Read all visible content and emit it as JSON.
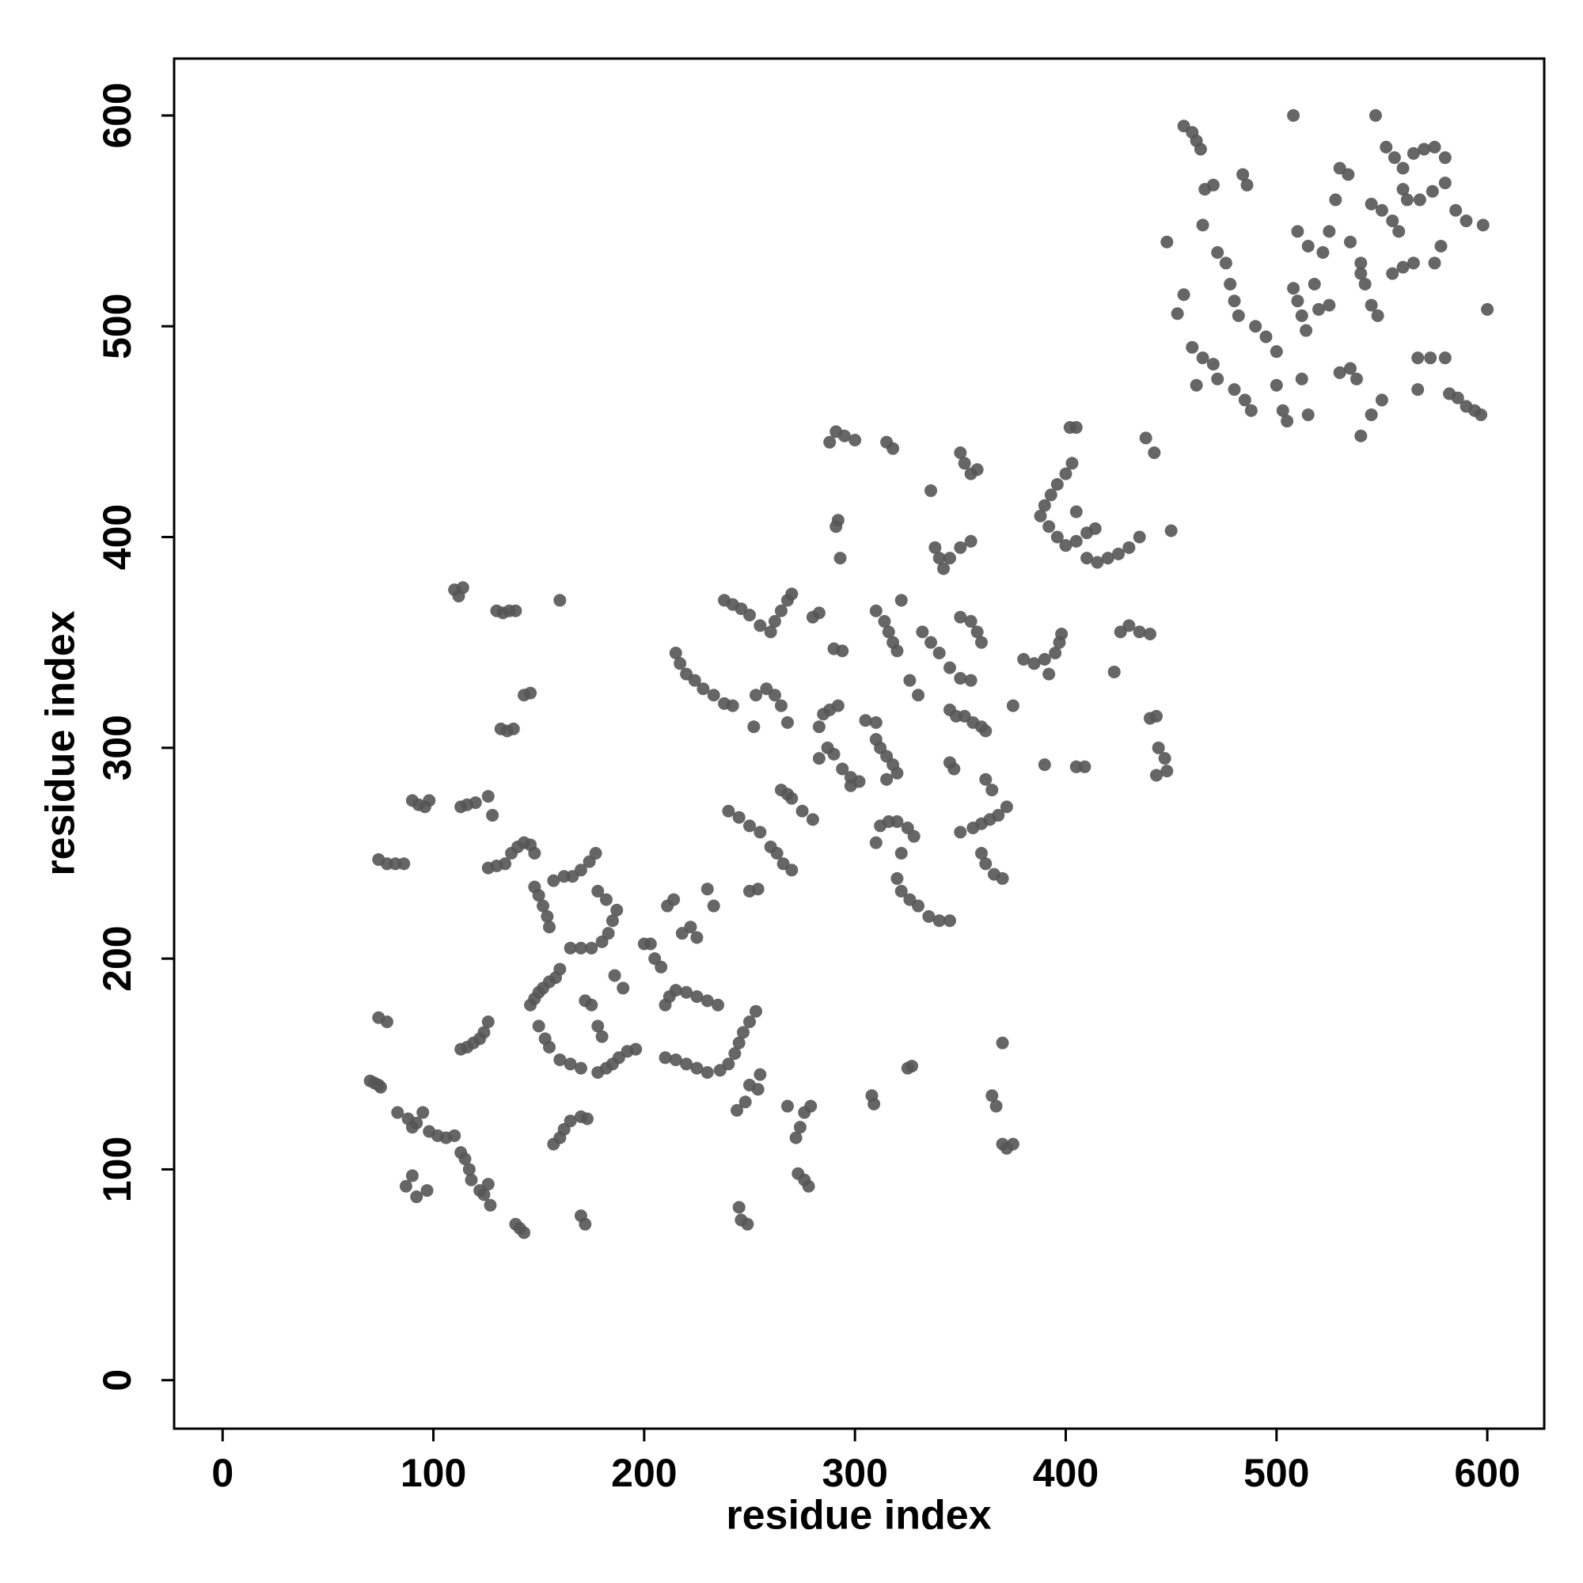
{
  "chart_data": {
    "type": "scatter",
    "xlabel": "residue index",
    "ylabel": "residue index",
    "color": "#555555",
    "xlim": [
      -23,
      627
    ],
    "ylim": [
      -23,
      627
    ],
    "xticks": [
      0,
      100,
      200,
      300,
      400,
      500,
      600
    ],
    "yticks": [
      0,
      100,
      200,
      300,
      400,
      500,
      600
    ],
    "x": [
      70,
      72,
      74,
      75,
      74,
      78,
      74,
      78,
      82,
      86,
      83,
      88,
      92,
      95,
      90,
      98,
      102,
      106,
      110,
      87,
      90,
      92,
      97,
      90,
      93,
      96,
      98,
      110,
      112,
      114,
      113,
      116,
      120,
      126,
      128,
      113,
      116,
      119,
      122,
      124,
      126,
      113,
      115,
      117,
      118,
      122,
      124,
      126,
      127,
      130,
      133,
      136,
      139,
      132,
      135,
      138,
      126,
      130,
      134,
      137,
      140,
      143,
      146,
      148,
      143,
      146,
      139,
      141,
      143,
      160,
      148,
      150,
      152,
      154,
      155,
      157,
      162,
      166,
      170,
      174,
      177,
      146,
      148,
      150,
      152,
      155,
      158,
      160,
      150,
      153,
      155,
      160,
      165,
      170,
      157,
      160,
      162,
      165,
      170,
      173,
      170,
      172,
      165,
      170,
      175,
      180,
      183,
      185,
      187,
      182,
      178,
      178,
      182,
      185,
      188,
      192,
      196,
      172,
      175,
      178,
      180,
      186,
      190,
      200,
      203,
      205,
      208,
      210,
      212,
      215,
      220,
      225,
      230,
      235,
      210,
      215,
      220,
      225,
      230,
      236,
      240,
      243,
      245,
      247,
      250,
      253,
      211,
      214,
      218,
      222,
      225,
      230,
      233,
      215,
      217,
      220,
      224,
      228,
      233,
      238,
      242,
      238,
      242,
      246,
      250,
      255,
      260,
      262,
      265,
      268,
      270,
      240,
      245,
      250,
      255,
      244,
      248,
      250,
      255,
      254,
      245,
      246,
      249,
      250,
      254,
      253,
      258,
      262,
      265,
      268,
      252,
      260,
      263,
      266,
      270,
      265,
      268,
      270,
      275,
      280,
      268,
      272,
      274,
      276,
      279,
      273,
      276,
      278,
      280,
      283,
      283,
      285,
      288,
      292,
      283,
      287,
      290,
      294,
      298,
      302,
      298,
      290,
      294,
      288,
      291,
      295,
      300,
      291,
      292,
      293,
      305,
      310,
      308,
      309,
      310,
      314,
      316,
      318,
      320,
      310,
      312,
      315,
      318,
      320,
      315,
      312,
      316,
      320,
      325,
      328,
      322,
      310,
      315,
      318,
      320,
      322,
      326,
      330,
      335,
      340,
      345,
      322,
      326,
      330,
      325,
      327,
      332,
      336,
      340,
      345,
      350,
      355,
      336,
      338,
      340,
      342,
      345,
      350,
      355,
      345,
      348,
      352,
      356,
      360,
      362,
      345,
      347,
      350,
      352,
      355,
      358,
      350,
      355,
      358,
      360,
      350,
      356,
      360,
      364,
      368,
      372,
      362,
      365,
      360,
      362,
      366,
      370,
      365,
      367,
      370,
      370,
      372,
      375,
      375,
      380,
      385,
      390,
      395,
      397,
      398,
      392,
      388,
      390,
      393,
      396,
      400,
      403,
      390,
      392,
      396,
      400,
      405,
      410,
      414,
      405,
      402,
      405,
      405,
      409,
      410,
      415,
      420,
      425,
      430,
      435,
      423,
      426,
      430,
      435,
      440,
      438,
      442,
      440,
      443,
      444,
      447,
      448,
      443,
      450,
      448,
      453,
      456,
      456,
      460,
      462,
      464,
      465,
      460,
      462,
      465,
      470,
      472,
      466,
      470,
      472,
      476,
      478,
      480,
      482,
      484,
      486,
      480,
      485,
      488,
      490,
      495,
      500,
      500,
      503,
      505,
      508,
      510,
      512,
      514,
      510,
      515,
      518,
      520,
      512,
      515,
      508,
      522,
      525,
      528,
      530,
      534,
      525,
      530,
      535,
      538,
      540,
      540,
      542,
      545,
      548,
      545,
      550,
      555,
      558,
      560,
      562,
      547,
      552,
      556,
      560,
      565,
      570,
      575,
      580,
      555,
      560,
      565,
      575,
      578,
      568,
      574,
      580,
      585,
      590,
      545,
      550,
      567,
      573,
      580,
      567,
      582,
      586,
      590,
      594,
      597,
      598,
      600,
      535,
      540
    ],
    "values": [
      142,
      141,
      140,
      139,
      172,
      170,
      247,
      245,
      245,
      245,
      127,
      124,
      122,
      127,
      120,
      118,
      116,
      115,
      116,
      92,
      97,
      87,
      90,
      275,
      273,
      272,
      275,
      375,
      372,
      376,
      272,
      273,
      274,
      277,
      268,
      157,
      158,
      160,
      162,
      165,
      170,
      108,
      105,
      100,
      95,
      90,
      88,
      93,
      83,
      365,
      364,
      365,
      365,
      309,
      308,
      309,
      243,
      244,
      245,
      250,
      253,
      255,
      254,
      250,
      325,
      326,
      74,
      72,
      70,
      370,
      234,
      230,
      225,
      220,
      215,
      237,
      239,
      239,
      242,
      246,
      250,
      178,
      181,
      184,
      186,
      189,
      191,
      195,
      168,
      162,
      158,
      152,
      150,
      148,
      112,
      115,
      119,
      123,
      125,
      124,
      78,
      74,
      205,
      205,
      205,
      208,
      212,
      218,
      223,
      228,
      232,
      146,
      148,
      150,
      153,
      156,
      157,
      180,
      178,
      168,
      163,
      192,
      186,
      207,
      207,
      200,
      196,
      178,
      182,
      185,
      184,
      182,
      180,
      178,
      153,
      152,
      150,
      148,
      146,
      147,
      150,
      155,
      160,
      165,
      170,
      175,
      225,
      228,
      212,
      215,
      210,
      233,
      225,
      345,
      340,
      335,
      332,
      328,
      325,
      321,
      320,
      370,
      368,
      366,
      363,
      358,
      355,
      360,
      365,
      370,
      373,
      270,
      267,
      263,
      260,
      128,
      132,
      140,
      145,
      138,
      82,
      76,
      74,
      232,
      233,
      325,
      328,
      325,
      320,
      312,
      310,
      253,
      250,
      245,
      242,
      280,
      278,
      276,
      270,
      266,
      130,
      115,
      120,
      127,
      130,
      98,
      95,
      92,
      362,
      364,
      310,
      316,
      318,
      320,
      295,
      300,
      297,
      290,
      286,
      284,
      282,
      347,
      346,
      445,
      450,
      448,
      446,
      405,
      408,
      390,
      313,
      312,
      135,
      131,
      365,
      360,
      355,
      350,
      346,
      304,
      300,
      296,
      292,
      288,
      285,
      263,
      265,
      265,
      262,
      258,
      250,
      255,
      445,
      442,
      238,
      232,
      228,
      225,
      220,
      218,
      218,
      370,
      332,
      325,
      148,
      149,
      355,
      350,
      345,
      338,
      333,
      332,
      422,
      395,
      390,
      385,
      390,
      395,
      398,
      318,
      315,
      315,
      312,
      310,
      308,
      293,
      290,
      440,
      435,
      430,
      432,
      362,
      360,
      355,
      350,
      260,
      262,
      264,
      266,
      268,
      272,
      285,
      280,
      250,
      245,
      240,
      238,
      135,
      130,
      160,
      112,
      110,
      112,
      320,
      342,
      340,
      342,
      345,
      350,
      354,
      335,
      410,
      415,
      420,
      425,
      430,
      435,
      292,
      405,
      400,
      396,
      398,
      402,
      404,
      412,
      452,
      452,
      291,
      291,
      390,
      388,
      390,
      392,
      395,
      400,
      336,
      355,
      358,
      355,
      354,
      447,
      440,
      314,
      315,
      300,
      295,
      289,
      287,
      403,
      540,
      506,
      515,
      595,
      592,
      588,
      584,
      548,
      490,
      472,
      485,
      482,
      475,
      565,
      567,
      535,
      530,
      520,
      512,
      505,
      572,
      567,
      470,
      465,
      460,
      500,
      495,
      488,
      472,
      460,
      455,
      518,
      512,
      505,
      498,
      545,
      538,
      520,
      508,
      475,
      458,
      600,
      535,
      545,
      560,
      575,
      572,
      510,
      478,
      480,
      475,
      448,
      525,
      520,
      510,
      505,
      558,
      555,
      550,
      545,
      565,
      560,
      600,
      585,
      580,
      575,
      582,
      584,
      585,
      580,
      525,
      528,
      530,
      530,
      538,
      560,
      564,
      568,
      555,
      550,
      458,
      465,
      485,
      485,
      485,
      470,
      468,
      466,
      462,
      460,
      458,
      548,
      508,
      540,
      530
    ]
  }
}
